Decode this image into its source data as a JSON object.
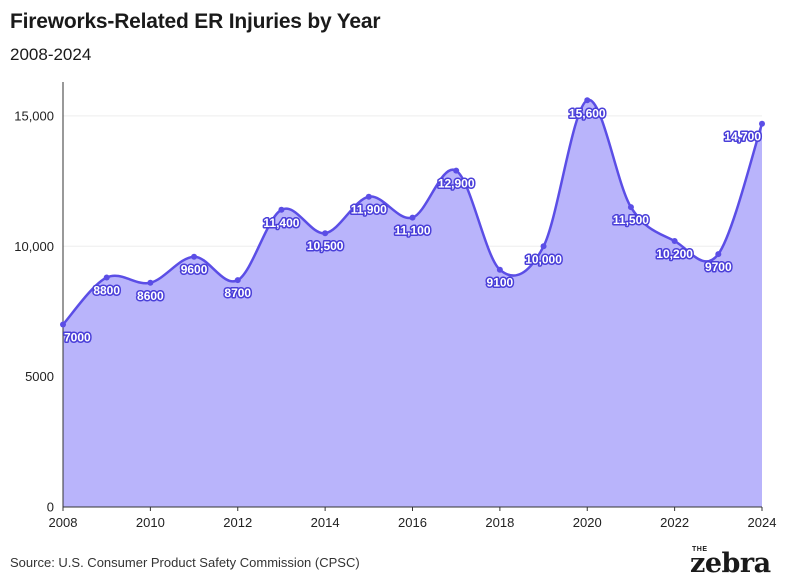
{
  "header": {
    "title": "Fireworks-Related ER Injuries by Year",
    "subtitle": "2008-2024"
  },
  "footer": {
    "source": "Source: U.S. Consumer Product Safety Commission (CPSC)",
    "logo_top": "THE",
    "logo_word": "zebra"
  },
  "colors": {
    "line": "#5b4ee6",
    "fill": "#b9b4fb",
    "point": "#5b4ee6",
    "grid": "#eeeeee",
    "axis": "#333333"
  },
  "chart_data": {
    "type": "area",
    "title": "Fireworks-Related ER Injuries by Year",
    "subtitle": "2008-2024",
    "xlabel": "",
    "ylabel": "",
    "x": [
      2008,
      2009,
      2010,
      2011,
      2012,
      2013,
      2014,
      2015,
      2016,
      2017,
      2018,
      2019,
      2020,
      2021,
      2022,
      2023,
      2024
    ],
    "series": [
      {
        "values": [
          7000,
          8800,
          8600,
          9600,
          8700,
          11400,
          10500,
          11900,
          11100,
          12900,
          9100,
          10000,
          15600,
          11500,
          10200,
          9700,
          14700
        ]
      }
    ],
    "data_labels": [
      "7000",
      "8800",
      "8600",
      "9600",
      "8700",
      "11,400",
      "10,500",
      "11,900",
      "11,100",
      "12,900",
      "9100",
      "10,000",
      "15,600",
      "11,500",
      "10,200",
      "9700",
      "14,700"
    ],
    "x_ticks": [
      2008,
      2010,
      2012,
      2014,
      2016,
      2018,
      2020,
      2022,
      2024
    ],
    "x_tick_labels": [
      "2008",
      "2010",
      "2012",
      "2014",
      "2016",
      "2018",
      "2020",
      "2022",
      "2024"
    ],
    "y_ticks": [
      0,
      5000,
      10000,
      15000
    ],
    "y_tick_labels": [
      "0",
      "5000",
      "10,000",
      "15,000"
    ],
    "xlim": [
      2008,
      2024
    ],
    "ylim": [
      0,
      16300
    ],
    "grid": true,
    "legend": "none"
  }
}
